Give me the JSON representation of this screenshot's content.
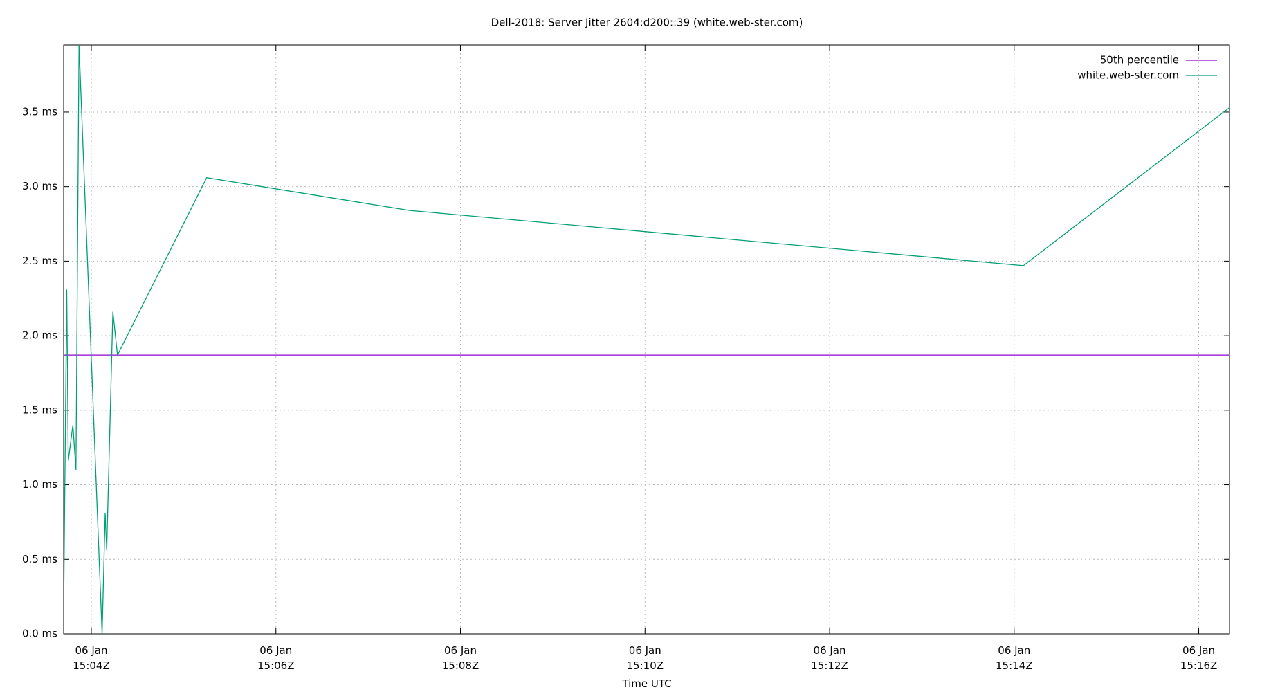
{
  "chart_data": {
    "type": "line",
    "title": "Dell-2018: Server Jitter 2604:d200::39 (white.web-ster.com)",
    "x_label": "Time UTC",
    "xlim": [
      "06 Jan 15:03:42Z",
      "06 Jan 15:16:20Z"
    ],
    "xticks": [
      "06 Jan 15:04Z",
      "06 Jan 15:06Z",
      "06 Jan 15:08Z",
      "06 Jan 15:10Z",
      "06 Jan 15:12Z",
      "06 Jan 15:14Z",
      "06 Jan 15:16Z"
    ],
    "ylim": [
      0,
      3.95
    ],
    "yticks": [
      {
        "value": 0,
        "label": "0.0 ms"
      },
      {
        "value": 0.5,
        "label": "0.5 ms"
      },
      {
        "value": 1,
        "label": "1.0 ms"
      },
      {
        "value": 1.5,
        "label": "1.5 ms"
      },
      {
        "value": 2,
        "label": "2.0 ms"
      },
      {
        "value": 2.5,
        "label": "2.5 ms"
      },
      {
        "value": 3,
        "label": "3.0 ms"
      },
      {
        "value": 3.5,
        "label": "3.5 ms"
      }
    ],
    "grid": true,
    "legend": "top-right",
    "series": [
      {
        "name": "50th percentile",
        "color": "#9400d3",
        "x": [
          "06 Jan 15:03:42Z",
          "06 Jan 15:16:20Z"
        ],
        "values": [
          1.87,
          1.87
        ]
      },
      {
        "name": "white.web-ster.com",
        "color": "#009e73",
        "x": [
          "06 Jan 15:03:42Z",
          "06 Jan 15:03:44Z",
          "06 Jan 15:03:45Z",
          "06 Jan 15:03:48Z",
          "06 Jan 15:03:50Z",
          "06 Jan 15:03:52Z",
          "06 Jan 15:04:07Z",
          "06 Jan 15:04:09Z",
          "06 Jan 15:04:10Z",
          "06 Jan 15:04:14Z",
          "06 Jan 15:04:17Z",
          "06 Jan 15:05:15Z",
          "06 Jan 15:07:27Z",
          "06 Jan 15:14:06Z",
          "06 Jan 15:16:20Z"
        ],
        "values": [
          0.16,
          2.31,
          1.16,
          1.4,
          1.1,
          3.95,
          0,
          0.81,
          0.56,
          2.16,
          1.87,
          3.06,
          2.84,
          2.47,
          3.53
        ]
      }
    ]
  }
}
